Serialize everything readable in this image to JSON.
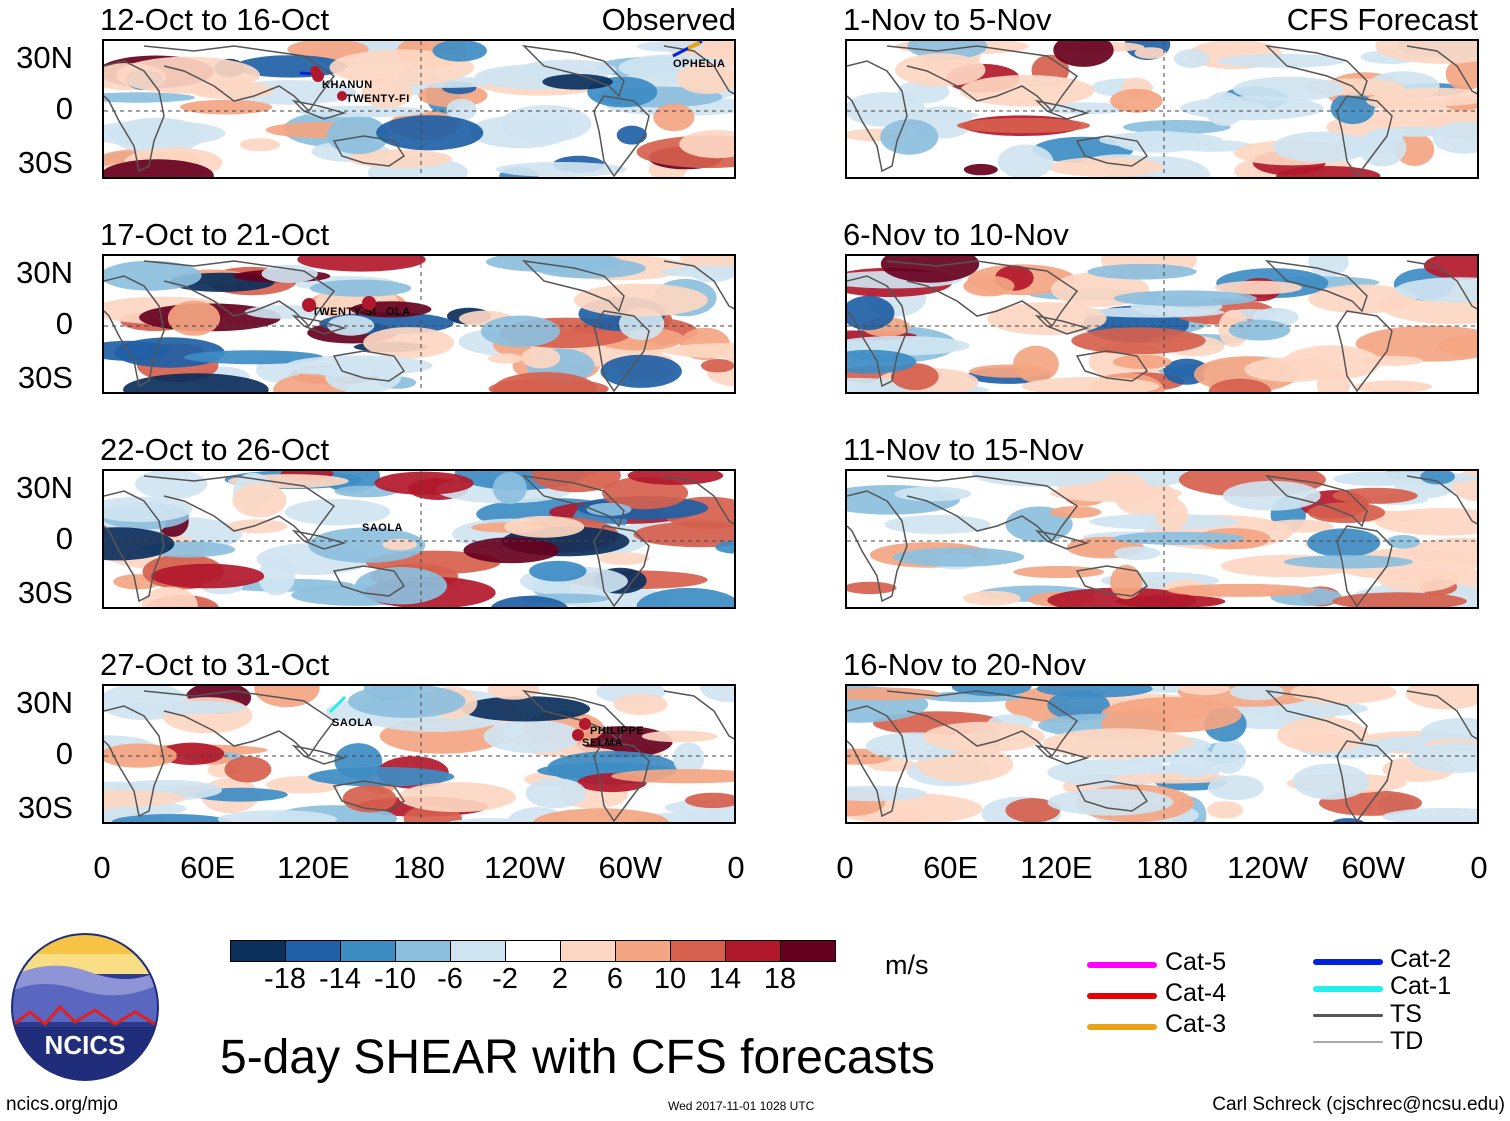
{
  "main_title": "5-day SHEAR with CFS forecasts",
  "site_url": "ncics.org/mjo",
  "timestamp": "Wed 2017-11-01 1028 UTC",
  "author": "Carl Schreck (cjschrec@ncsu.edu)",
  "logo_text": "NCICS",
  "units": "m/s",
  "observed_label": "Observed",
  "forecast_label": "CFS Forecast",
  "lat_labels": [
    "30N",
    "0",
    "30S"
  ],
  "lon_labels": [
    "0",
    "60E",
    "120E",
    "180",
    "120W",
    "60W",
    "0"
  ],
  "panels_left": [
    {
      "title": "12-Oct to 16-Oct",
      "storms": [
        "KHANUN",
        "TWENTY-FI",
        "OPHELIA"
      ]
    },
    {
      "title": "17-Oct to 21-Oct",
      "storms": [
        "TWENTY-SI",
        "OLA"
      ]
    },
    {
      "title": "22-Oct to 26-Oct",
      "storms": [
        "SAOLA"
      ]
    },
    {
      "title": "27-Oct to 31-Oct",
      "storms": [
        "SAOLA",
        "PHILIPPE",
        "SELMA"
      ]
    }
  ],
  "panels_right": [
    {
      "title": "1-Nov to 5-Nov"
    },
    {
      "title": "6-Nov to 10-Nov"
    },
    {
      "title": "11-Nov to 15-Nov"
    },
    {
      "title": "16-Nov to 20-Nov"
    }
  ],
  "colorbar": {
    "colors": [
      "#0b2f5b",
      "#1f5fa5",
      "#3d8cc4",
      "#8cbfde",
      "#cfe4f1",
      "#ffffff",
      "#fdd7c2",
      "#f4a582",
      "#d6604d",
      "#b2182b",
      "#67001f"
    ],
    "ticks": [
      "-18",
      "-14",
      "-10",
      "-6",
      "-2",
      "2",
      "6",
      "10",
      "14",
      "18"
    ]
  },
  "legend": [
    {
      "label": "Cat-5",
      "color": "#ff00ff"
    },
    {
      "label": "Cat-4",
      "color": "#e60000"
    },
    {
      "label": "Cat-3",
      "color": "#e8a317"
    },
    {
      "label": "Cat-2",
      "color": "#0022dd"
    },
    {
      "label": "Cat-1",
      "color": "#22eeee"
    },
    {
      "label": "TS",
      "color": "#555555"
    },
    {
      "label": "TD",
      "color": "#aaaaaa"
    }
  ]
}
